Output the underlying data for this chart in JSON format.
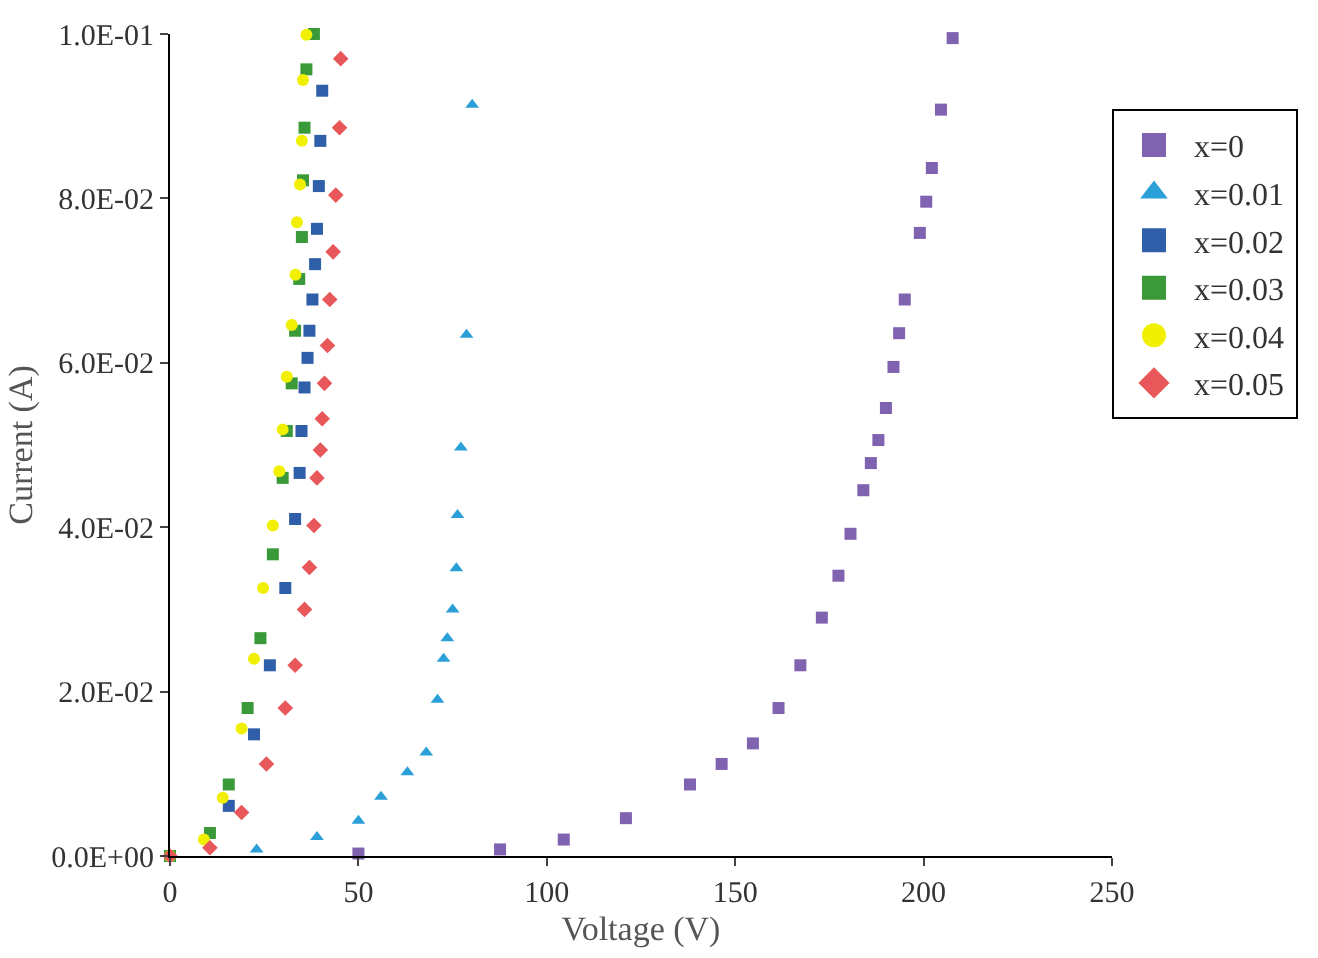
{
  "chart_data": {
    "type": "scatter",
    "xlabel": "Voltage (V)",
    "ylabel": "Current (A)",
    "xlim": [
      0,
      250
    ],
    "xticks": [
      0,
      50,
      100,
      150,
      200,
      250
    ],
    "ylim": [
      0,
      0.1
    ],
    "yticks": [
      {
        "value": 0,
        "label": "0.0E+00"
      },
      {
        "value": 0.02,
        "label": "2.0E-02"
      },
      {
        "value": 0.04,
        "label": "4.0E-02"
      },
      {
        "value": 0.06,
        "label": "6.0E-02"
      },
      {
        "value": 0.08,
        "label": "8.0E-02"
      },
      {
        "value": 0.1,
        "label": "1.0E-01"
      }
    ],
    "legend": "right",
    "series": [
      {
        "name": "x=0",
        "color": "#7f62b0",
        "marker": "square",
        "x": [
          50,
          87.6,
          104.5,
          121,
          138,
          146.4,
          154.7,
          161.5,
          167.3,
          173,
          177.4,
          180.6,
          184,
          186,
          188,
          190,
          192,
          193.5,
          195,
          199,
          200.7,
          202.2,
          204.6,
          207.7
        ],
        "values": [
          0.0003,
          0.0008,
          0.002,
          0.0046,
          0.0087,
          0.0112,
          0.0137,
          0.018,
          0.0232,
          0.029,
          0.0341,
          0.0392,
          0.0445,
          0.0478,
          0.0506,
          0.0545,
          0.0595,
          0.0636,
          0.0677,
          0.0758,
          0.0796,
          0.0837,
          0.0908,
          0.0995
        ]
      },
      {
        "name": "x=0.01",
        "color": "#2a9fd8",
        "marker": "triangle",
        "x": [
          23,
          39,
          50,
          56,
          63,
          68,
          71,
          72.6,
          73.6,
          75,
          76,
          76.3,
          77.2,
          78.7,
          80.2
        ],
        "values": [
          0.0008,
          0.0023,
          0.0043,
          0.0072,
          0.0102,
          0.0126,
          0.019,
          0.024,
          0.0265,
          0.03,
          0.035,
          0.0415,
          0.0497,
          0.0634,
          0.0914
        ]
      },
      {
        "name": "x=0.02",
        "color": "#2e5fa8",
        "marker": "square",
        "x": [
          15.6,
          22.3,
          26.5,
          30.6,
          33.2,
          34.4,
          34.9,
          35.7,
          36.5,
          37,
          37.8,
          38.5,
          39,
          39.5,
          39.9,
          40.4
        ],
        "values": [
          0.0061,
          0.0148,
          0.0232,
          0.0326,
          0.041,
          0.0466,
          0.0517,
          0.057,
          0.0606,
          0.0639,
          0.0677,
          0.072,
          0.0763,
          0.0815,
          0.087,
          0.0931
        ]
      },
      {
        "name": "x=0.03",
        "color": "#3a9a3a",
        "marker": "square",
        "x": [
          0,
          10.6,
          15.6,
          20.6,
          24,
          27.3,
          29.9,
          31,
          32.3,
          33.2,
          34.3,
          35,
          35.3,
          35.7,
          36.2,
          38.2
        ],
        "values": [
          0,
          0.0028,
          0.0087,
          0.018,
          0.0265,
          0.0367,
          0.046,
          0.0517,
          0.0575,
          0.0639,
          0.0702,
          0.0753,
          0.0822,
          0.0886,
          0.0957,
          0.1
        ]
      },
      {
        "name": "x=0.04",
        "color": "#f0f000",
        "marker": "circle",
        "x": [
          0,
          9,
          14,
          19,
          22.3,
          24.7,
          27.3,
          29,
          29.9,
          31,
          32.3,
          33.3,
          33.7,
          34.5,
          35,
          35.3,
          36.2
        ],
        "values": [
          0,
          0.002,
          0.0071,
          0.0155,
          0.024,
          0.0326,
          0.0402,
          0.0468,
          0.0519,
          0.0583,
          0.0646,
          0.0707,
          0.0771,
          0.0817,
          0.087,
          0.0944,
          0.0999
        ]
      },
      {
        "name": "x=0.05",
        "color": "#e8585a",
        "marker": "diamond",
        "x": [
          0,
          10.6,
          19,
          25.6,
          30.6,
          33.2,
          35.7,
          37,
          38.2,
          39,
          39.9,
          40.4,
          41,
          41.8,
          42.4,
          43.3,
          44,
          45,
          45.3
        ],
        "values": [
          0,
          0.001,
          0.0053,
          0.0112,
          0.018,
          0.0232,
          0.03,
          0.0351,
          0.0402,
          0.046,
          0.0494,
          0.0532,
          0.0575,
          0.0621,
          0.0677,
          0.0735,
          0.0804,
          0.0886,
          0.097
        ]
      }
    ]
  }
}
